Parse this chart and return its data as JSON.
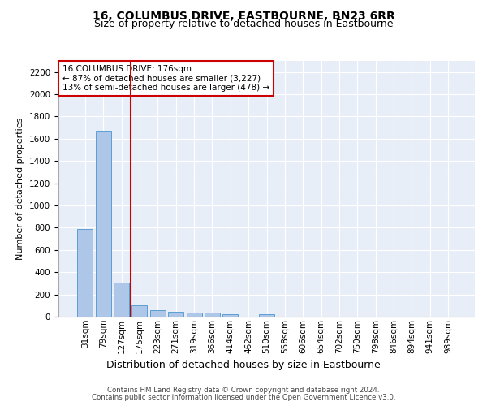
{
  "title": "16, COLUMBUS DRIVE, EASTBOURNE, BN23 6RR",
  "subtitle": "Size of property relative to detached houses in Eastbourne",
  "xlabel": "Distribution of detached houses by size in Eastbourne",
  "ylabel": "Number of detached properties",
  "categories": [
    "31sqm",
    "79sqm",
    "127sqm",
    "175sqm",
    "223sqm",
    "271sqm",
    "319sqm",
    "366sqm",
    "414sqm",
    "462sqm",
    "510sqm",
    "558sqm",
    "606sqm",
    "654sqm",
    "702sqm",
    "750sqm",
    "798sqm",
    "846sqm",
    "894sqm",
    "941sqm",
    "989sqm"
  ],
  "values": [
    790,
    1670,
    305,
    100,
    55,
    45,
    38,
    35,
    22,
    0,
    20,
    0,
    0,
    0,
    0,
    0,
    0,
    0,
    0,
    0,
    0
  ],
  "bar_color": "#aec6e8",
  "bar_edge_color": "#5a9fd4",
  "background_color": "#e8eef8",
  "grid_color": "#ffffff",
  "vline_color": "#cc0000",
  "vline_pos": 2.5,
  "annotation_text": "16 COLUMBUS DRIVE: 176sqm\n← 87% of detached houses are smaller (3,227)\n13% of semi-detached houses are larger (478) →",
  "annotation_box_color": "#ffffff",
  "annotation_border_color": "#cc0000",
  "ylim": [
    0,
    2300
  ],
  "yticks": [
    0,
    200,
    400,
    600,
    800,
    1000,
    1200,
    1400,
    1600,
    1800,
    2000,
    2200
  ],
  "footer_line1": "Contains HM Land Registry data © Crown copyright and database right 2024.",
  "footer_line2": "Contains public sector information licensed under the Open Government Licence v3.0.",
  "title_fontsize": 10,
  "subtitle_fontsize": 9,
  "ylabel_fontsize": 8,
  "xlabel_fontsize": 9,
  "tick_fontsize": 7.5,
  "annotation_fontsize": 7.5,
  "footer_fontsize": 6.2
}
